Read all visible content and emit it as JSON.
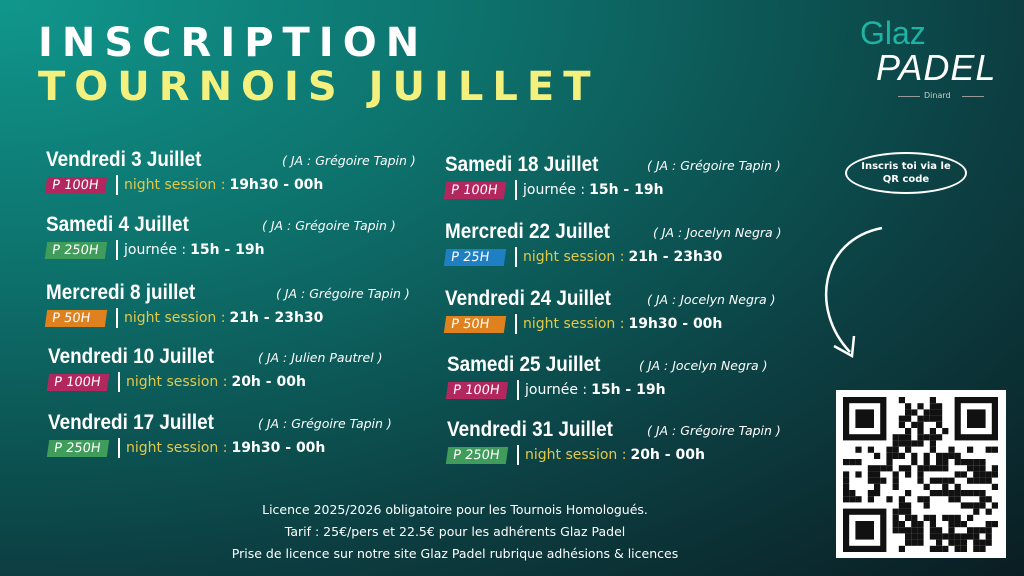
{
  "header": {
    "title_line1": "INSCRIPTION",
    "title_line2": "TOURNOIS JUILLET"
  },
  "logo": {
    "top": "Glaz",
    "bottom": "PADEL",
    "place": "Dinard"
  },
  "events": [
    {
      "day": "Vendredi 3 Juillet",
      "ja": "( JA : Grégoire Tapin )",
      "badge": "P 100H",
      "badge_color": "#b3275f",
      "session": "night session :",
      "session_color": "#e3c94a",
      "time": "19h30 - 00h"
    },
    {
      "day": "Samedi 4 Juillet",
      "ja": "( JA : Grégoire Tapin )",
      "badge": "P 250H",
      "badge_color": "#3f9c5a",
      "session": "journée :",
      "session_color": "#ffffff",
      "time": "15h - 19h"
    },
    {
      "day": "Mercredi 8 juillet",
      "ja": "( JA : Grégoire Tapin )",
      "badge": "P 50H",
      "badge_color": "#e0811f",
      "session": "night session :",
      "session_color": "#e3c94a",
      "time": "21h - 23h30"
    },
    {
      "day": "Vendredi 10 Juillet",
      "ja": "( JA : Julien Pautrel )",
      "badge": "P 100H",
      "badge_color": "#b3275f",
      "session": "night session :",
      "session_color": "#e3c94a",
      "time": "20h - 00h"
    },
    {
      "day": "Vendredi 17 Juillet",
      "ja": "( JA : Grégoire Tapin )",
      "badge": "P 250H",
      "badge_color": "#3f9c5a",
      "session": "night session :",
      "session_color": "#e3c94a",
      "time": "19h30 - 00h"
    },
    {
      "day": "Samedi 18 Juillet",
      "ja": "( JA : Grégoire Tapin )",
      "badge": "P 100H",
      "badge_color": "#b3275f",
      "session": "journée :",
      "session_color": "#ffffff",
      "time": "15h - 19h"
    },
    {
      "day": "Mercredi 22 Juillet",
      "ja": "( JA : Jocelyn Negra )",
      "badge": "P 25H",
      "badge_color": "#1e7fc2",
      "session": "night session :",
      "session_color": "#e3c94a",
      "time": "21h - 23h30"
    },
    {
      "day": "Vendredi 24 Juillet",
      "ja": "( JA : Jocelyn Negra )",
      "badge": "P 50H",
      "badge_color": "#e0811f",
      "session": "night session :",
      "session_color": "#e3c94a",
      "time": "19h30 - 00h"
    },
    {
      "day": "Samedi 25 Juillet",
      "ja": "( JA : Jocelyn Negra )",
      "badge": "P 100H",
      "badge_color": "#b3275f",
      "session": "journée :",
      "session_color": "#ffffff",
      "time": "15h - 19h"
    },
    {
      "day": "Vendredi 31 Juillet",
      "ja": "( JA : Grégoire Tapin )",
      "badge": "P 250H",
      "badge_color": "#3f9c5a",
      "session": "night session :",
      "session_color": "#e3c94a",
      "time": "20h - 00h"
    }
  ],
  "callout": "Inscris toi via le QR code",
  "footer": [
    "Licence 2025/2026 obligatoire pour les Tournois Homologués.",
    "Tarif : 25€/pers et 22.5€ pour les adhérents Glaz Padel",
    "Prise de licence sur notre site Glaz Padel rubrique adhésions & licences"
  ]
}
